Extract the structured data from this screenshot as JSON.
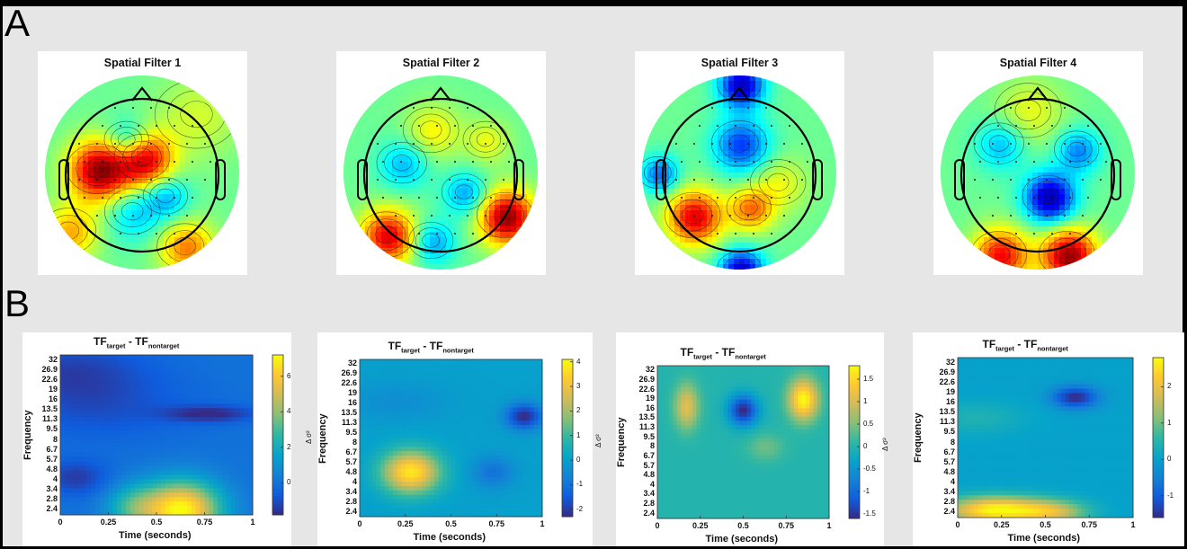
{
  "panel_labels": [
    "A",
    "B"
  ],
  "topomaps": [
    {
      "title": "Spatial Filter 1"
    },
    {
      "title": "Spatial Filter 2"
    },
    {
      "title": "Spatial Filter 3"
    },
    {
      "title": "Spatial Filter 4"
    }
  ],
  "chart_data": [
    {
      "type": "heatmap",
      "title_main": "TF",
      "title_sub1": "target",
      "title_mid": " - TF",
      "title_sub2": "nontarget",
      "xlabel": "Time (seconds)",
      "ylabel": "Frequency",
      "colorbar_label": "Δ σ²",
      "xticks": [
        "0",
        "0.25",
        "0.5",
        "0.75",
        "1"
      ],
      "yticks": [
        "32",
        "26.9",
        "22.6",
        "19",
        "16",
        "13.5",
        "11.3",
        "9.5",
        "8",
        "6.7",
        "5.7",
        "4.8",
        "4",
        "3.4",
        "2.8",
        "2.4"
      ],
      "cbar_ticks": [
        "6",
        "4",
        "2",
        "0"
      ],
      "cbar_range": [
        -1.8,
        7.2
      ],
      "colormap": [
        "#352a87",
        "#0f5cdd",
        "#1481d6",
        "#06a4ca",
        "#2eb7a4",
        "#87bf77",
        "#d1bb59",
        "#fec832",
        "#f9fb0e"
      ],
      "background": 0.0,
      "blobs": [
        {
          "x": 0.63,
          "f": 2.6,
          "amp": 7.2,
          "sx": 0.14,
          "sf": 1.0
        },
        {
          "x": 0.38,
          "f": 2.7,
          "amp": 2.5,
          "sx": 0.1,
          "sf": 0.8
        },
        {
          "x": 0.78,
          "f": 12.3,
          "amp": -1.8,
          "sx": 0.16,
          "sf": 1.2
        },
        {
          "x": 0.08,
          "f": 4.4,
          "amp": -1.4,
          "sx": 0.12,
          "sf": 1.0
        },
        {
          "x": 0.2,
          "f": 13.5,
          "amp": -0.9,
          "sx": 0.35,
          "sf": 6.0
        },
        {
          "x": 0.05,
          "f": 25.0,
          "amp": -1.2,
          "sx": 0.3,
          "sf": 10.0
        }
      ]
    },
    {
      "type": "heatmap",
      "title_main": "TF",
      "title_sub1": "target",
      "title_mid": " - TF",
      "title_sub2": "nontarget",
      "xlabel": "Time (seconds)",
      "ylabel": "Frequency",
      "colorbar_label": "Δ σ²",
      "xticks": [
        "0",
        "0.25",
        "0.5",
        "0.75",
        "1"
      ],
      "yticks": [
        "32",
        "26.9",
        "22.6",
        "19",
        "16",
        "13.5",
        "11.3",
        "9.5",
        "8",
        "6.7",
        "5.7",
        "4.8",
        "4",
        "3.4",
        "2.8",
        "2.4"
      ],
      "cbar_ticks": [
        "4",
        "3",
        "2",
        "1",
        "0",
        "-1",
        "-2"
      ],
      "cbar_range": [
        -2.3,
        4.1
      ],
      "colormap": [
        "#352a87",
        "#0f5cdd",
        "#1481d6",
        "#06a4ca",
        "#2eb7a4",
        "#87bf77",
        "#d1bb59",
        "#fec832",
        "#f9fb0e"
      ],
      "background": 0.0,
      "blobs": [
        {
          "x": 0.28,
          "f": 5.0,
          "amp": 3.8,
          "sx": 0.11,
          "sf": 1.4
        },
        {
          "x": 0.9,
          "f": 12.5,
          "amp": -2.3,
          "sx": 0.07,
          "sf": 2.0
        },
        {
          "x": 0.73,
          "f": 5.0,
          "amp": -1.0,
          "sx": 0.08,
          "sf": 1.0
        },
        {
          "x": 0.2,
          "f": 16.0,
          "amp": -0.4,
          "sx": 0.2,
          "sf": 4.0
        }
      ]
    },
    {
      "type": "heatmap",
      "title_main": "TF",
      "title_sub1": "target",
      "title_mid": " - TF",
      "title_sub2": "nontarget",
      "xlabel": "Time (seconds)",
      "ylabel": "Frequency",
      "colorbar_label": "Δ σ²",
      "xticks": [
        "0",
        "0.25",
        "0.5",
        "0.75",
        "1"
      ],
      "yticks": [
        "32",
        "26.9",
        "22.6",
        "19",
        "16",
        "13.5",
        "11.3",
        "9.5",
        "8",
        "6.7",
        "5.7",
        "4.8",
        "4",
        "3.4",
        "2.8",
        "2.4"
      ],
      "cbar_ticks": [
        "1.5",
        "1",
        "0.5",
        "0",
        "-0.5",
        "-1",
        "-1.5"
      ],
      "cbar_range": [
        -1.6,
        1.8
      ],
      "colormap": [
        "#352a87",
        "#0f5cdd",
        "#1481d6",
        "#06a4ca",
        "#2eb7a4",
        "#87bf77",
        "#d1bb59",
        "#fec832",
        "#f9fb0e"
      ],
      "background": 0.0,
      "blobs": [
        {
          "x": 0.85,
          "f": 18.0,
          "amp": 1.8,
          "sx": 0.06,
          "sf": 5.0
        },
        {
          "x": 0.17,
          "f": 16.0,
          "amp": 1.1,
          "sx": 0.05,
          "sf": 5.0
        },
        {
          "x": 0.5,
          "f": 15.0,
          "amp": -1.6,
          "sx": 0.06,
          "sf": 3.0
        },
        {
          "x": 0.63,
          "f": 8.0,
          "amp": 0.4,
          "sx": 0.08,
          "sf": 1.5
        }
      ]
    },
    {
      "type": "heatmap",
      "title_main": "TF",
      "title_sub1": "target",
      "title_mid": " - TF",
      "title_sub2": "nontarget",
      "xlabel": "Time (seconds)",
      "ylabel": "Frequency",
      "colorbar_label": "Δ σ²",
      "xticks": [
        "0",
        "0.25",
        "0.5",
        "0.75",
        "1"
      ],
      "yticks": [
        "32",
        "26.9",
        "22.6",
        "19",
        "16",
        "13.5",
        "11.3",
        "9.5",
        "8",
        "6.7",
        "5.7",
        "4.8",
        "4",
        "3.4",
        "2.8",
        "2.4"
      ],
      "cbar_ticks": [
        "2",
        "1",
        "0",
        "-1"
      ],
      "cbar_range": [
        -1.6,
        2.8
      ],
      "colormap": [
        "#352a87",
        "#0f5cdd",
        "#1481d6",
        "#06a4ca",
        "#2eb7a4",
        "#87bf77",
        "#d1bb59",
        "#fec832",
        "#f9fb0e"
      ],
      "background": 0.0,
      "blobs": [
        {
          "x": 0.22,
          "f": 2.7,
          "amp": 2.8,
          "sx": 0.2,
          "sf": 0.45
        },
        {
          "x": 0.55,
          "f": 2.6,
          "amp": 1.4,
          "sx": 0.14,
          "sf": 0.4
        },
        {
          "x": 0.67,
          "f": 16.8,
          "amp": -1.6,
          "sx": 0.09,
          "sf": 2.2
        },
        {
          "x": 0.1,
          "f": 12.0,
          "amp": 0.4,
          "sx": 0.2,
          "sf": 2.5
        }
      ]
    }
  ]
}
